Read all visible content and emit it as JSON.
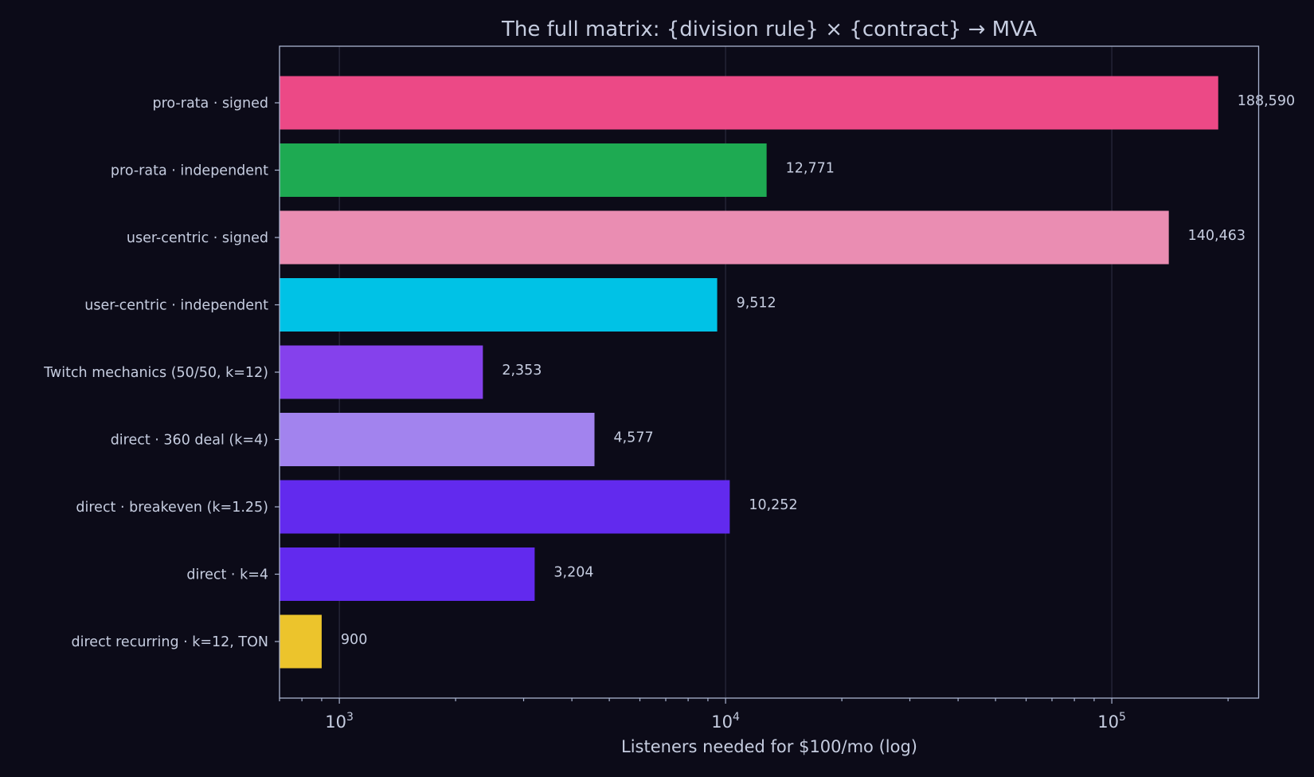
{
  "chart_data": {
    "type": "bar",
    "orientation": "horizontal",
    "title": "The full matrix: {division rule} × {contract} → MVA",
    "xlabel": "Listeners needed for $100/mo (log)",
    "ylabel": "",
    "x_scale": "log",
    "xlim": [
      700,
      240000
    ],
    "x_ticks": [
      {
        "value": 1000,
        "base": "10",
        "exp": "3"
      },
      {
        "value": 10000,
        "base": "10",
        "exp": "4"
      },
      {
        "value": 100000,
        "base": "10",
        "exp": "5"
      }
    ],
    "grid": "x-major",
    "legend": "none",
    "categories": [
      "pro-rata · signed",
      "pro-rata · independent",
      "user-centric · signed",
      "user-centric · independent",
      "Twitch mechanics (50/50, k=12)",
      "direct · 360 deal (k=4)",
      "direct · breakeven (k=1.25)",
      "direct · k=4",
      "direct recurring · k=12, TON"
    ],
    "values": [
      188590,
      12771,
      140463,
      9512,
      2353,
      4577,
      10252,
      3204,
      900
    ],
    "value_labels": [
      "188,590",
      "12,771",
      "140,463",
      "9,512",
      "2,353",
      "4,577",
      "10,252",
      "3,204",
      "900"
    ],
    "colors": [
      "#ec4986",
      "#1eaa52",
      "#ea8db2",
      "#00c2e6",
      "#8541ec",
      "#a283ee",
      "#622aee",
      "#622aee",
      "#ecc42c"
    ]
  }
}
